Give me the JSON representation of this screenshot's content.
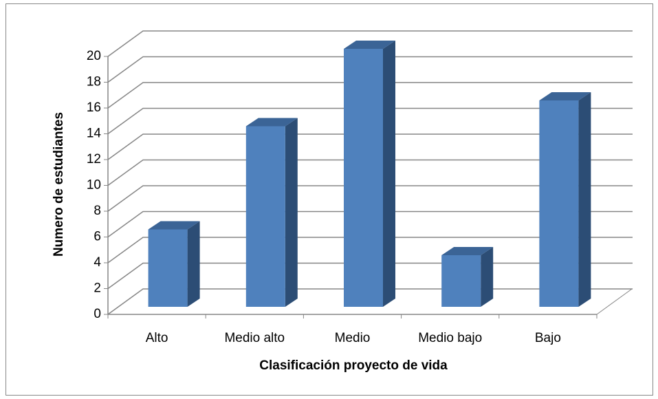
{
  "chart_data": {
    "type": "bar",
    "categories": [
      "Alto",
      "Medio alto",
      "Medio",
      "Medio bajo",
      "Bajo"
    ],
    "values": [
      6,
      14,
      20,
      4,
      16
    ],
    "color": "#4f81bd",
    "ylim": [
      0,
      20
    ],
    "yticks": [
      0,
      2,
      4,
      6,
      8,
      10,
      12,
      14,
      16,
      18,
      20
    ],
    "grid": true,
    "x_label": "Clasificación proyecto de vida",
    "y_label": "Numero de estudiantes"
  }
}
